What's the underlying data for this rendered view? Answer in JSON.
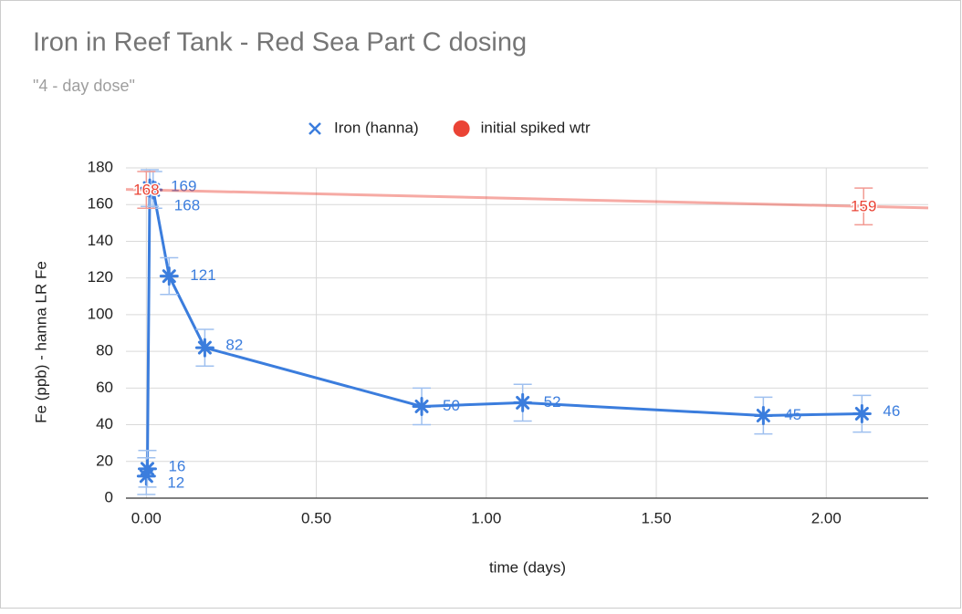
{
  "chart_data": {
    "type": "scatter",
    "title": "Iron in Reef Tank - Red Sea Part C dosing",
    "subtitle": "\"4 - day dose\"",
    "x_label": "time (days)",
    "y_label": "Fe (ppb) - hanna LR Fe",
    "xlim": [
      -0.06,
      2.3
    ],
    "xticks": [
      {
        "value": 0,
        "label": "0.00"
      },
      {
        "value": 0.5,
        "label": "0.50"
      },
      {
        "value": 1,
        "label": "1.00"
      },
      {
        "value": 1.5,
        "label": "1.50"
      },
      {
        "value": 2,
        "label": "2.00"
      }
    ],
    "ylim": [
      0,
      180
    ],
    "yticks": [
      0,
      20,
      40,
      60,
      80,
      100,
      120,
      140,
      160,
      180
    ],
    "grid": true,
    "legend": "top",
    "series": [
      {
        "name": "Iron (hanna)",
        "color": "#3b7ddd",
        "marker": "star",
        "line": true,
        "error": 10,
        "x": [
          0.0,
          0.003,
          0.01,
          0.02,
          0.067,
          0.172,
          0.81,
          1.107,
          1.815,
          2.105
        ],
        "values": [
          12,
          16,
          169,
          168,
          121,
          82,
          50,
          52,
          45,
          46
        ]
      },
      {
        "name": "initial spiked wtr",
        "color": "#ea4335",
        "marker": "circle",
        "line": false,
        "error": 10,
        "trendline": true,
        "x": [
          0.0,
          2.11
        ],
        "values": [
          168,
          159
        ]
      }
    ]
  }
}
